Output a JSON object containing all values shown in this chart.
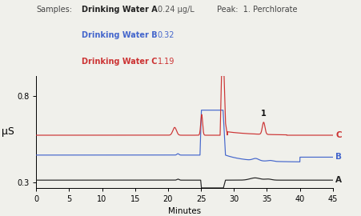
{
  "xlabel": "Minutes",
  "ylabel": "μS",
  "xlim": [
    0,
    45
  ],
  "ylim": [
    0.27,
    0.92
  ],
  "yticks": [
    0.3,
    0.8
  ],
  "xticks": [
    0,
    5,
    10,
    15,
    20,
    25,
    30,
    35,
    40,
    45
  ],
  "color_A": "#222222",
  "color_B": "#4466cc",
  "color_C": "#cc3333",
  "color_value_A": "#555555",
  "color_value_B": "#4466cc",
  "color_value_C": "#cc3333",
  "bg_color": "#f0f0eb",
  "baseline_A": 0.315,
  "baseline_B": 0.46,
  "baseline_C": 0.575
}
